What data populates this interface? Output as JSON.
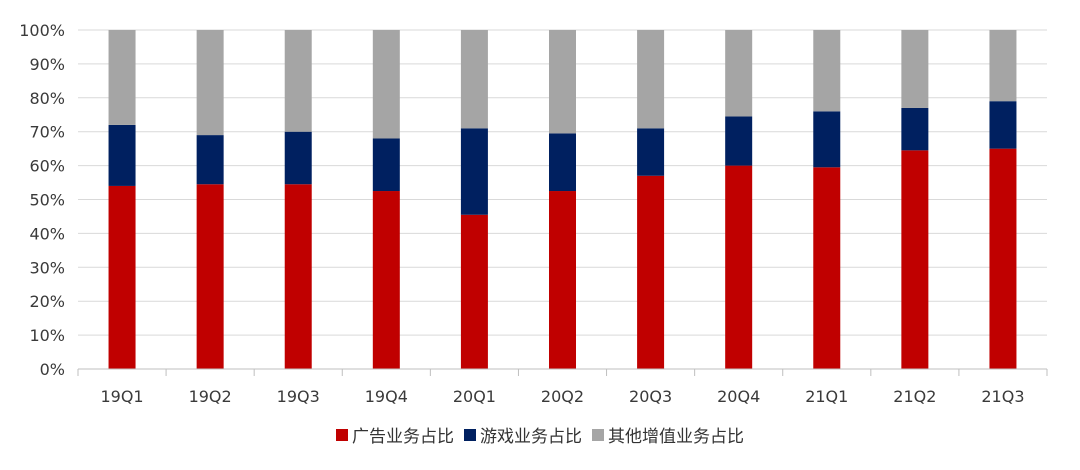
{
  "chart_data": {
    "type": "bar",
    "stacked": true,
    "title": "",
    "xlabel": "",
    "ylabel": "",
    "ylim": [
      0,
      100
    ],
    "y_ticks": [
      "0%",
      "10%",
      "20%",
      "30%",
      "40%",
      "50%",
      "60%",
      "70%",
      "80%",
      "90%",
      "100%"
    ],
    "grid": true,
    "legend_position": "bottom",
    "categories": [
      "19Q1",
      "19Q2",
      "19Q3",
      "19Q4",
      "20Q1",
      "20Q2",
      "20Q3",
      "20Q4",
      "21Q1",
      "21Q2",
      "21Q3"
    ],
    "series": [
      {
        "name": "广告业务占比",
        "color": "#c00000",
        "values": [
          54,
          54.5,
          54.5,
          52.5,
          45.5,
          52.5,
          57,
          60,
          59.5,
          64.5,
          65
        ]
      },
      {
        "name": "游戏业务占比",
        "color": "#002060",
        "values": [
          18,
          14.5,
          15.5,
          15.5,
          25.5,
          17,
          14,
          14.5,
          16.5,
          12.5,
          14
        ]
      },
      {
        "name": "其他增值业务占比",
        "color": "#a5a5a5",
        "values": [
          28,
          31,
          30,
          32,
          29,
          30.5,
          29,
          25.5,
          24,
          23,
          21
        ]
      }
    ]
  }
}
